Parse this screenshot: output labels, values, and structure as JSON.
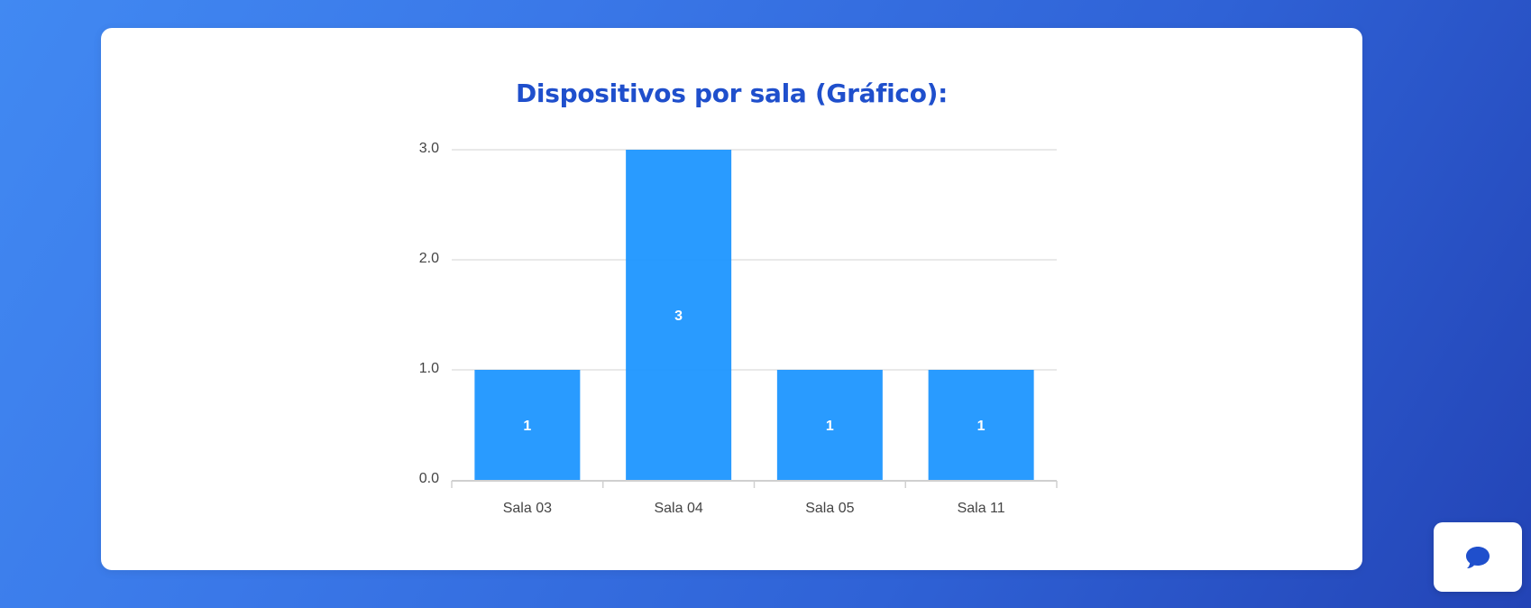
{
  "card": {
    "title": "Dispositivos por sala (Gráfico):"
  },
  "chart_data": {
    "type": "bar",
    "title": "",
    "xlabel": "",
    "ylabel": "",
    "categories": [
      "Sala 03",
      "Sala 04",
      "Sala 05",
      "Sala 11"
    ],
    "values": [
      1,
      3,
      1,
      1
    ],
    "data_labels": [
      "1",
      "3",
      "1",
      "1"
    ],
    "ylim": [
      0,
      3
    ],
    "yticks": [
      0,
      1,
      2,
      3
    ],
    "ytick_labels": [
      "0.0",
      "1.0",
      "2.0",
      "3.0"
    ],
    "grid": true,
    "legend": "none",
    "bar_color": "#1e96ff",
    "grid_color": "#e2e2e2",
    "axis_color": "#d0d0d0"
  },
  "chat_button": {
    "icon": "chat-bubble-icon",
    "icon_color": "#1f4fcc"
  }
}
